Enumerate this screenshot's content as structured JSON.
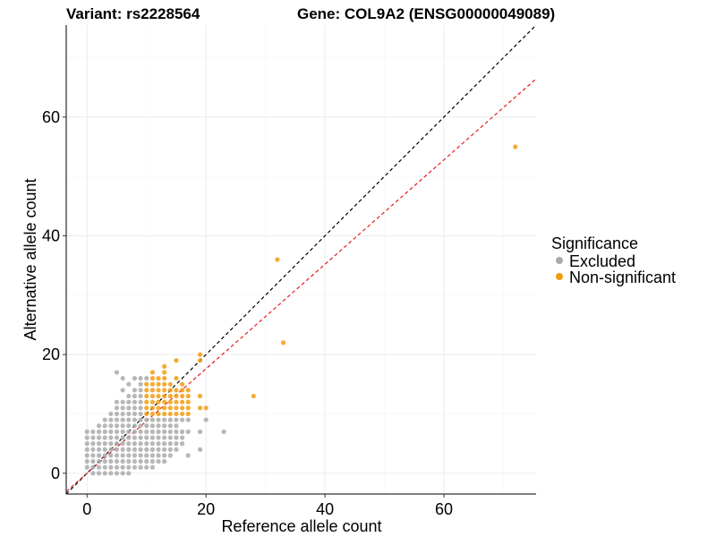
{
  "header": {
    "variant_title": "Variant: rs2228564",
    "gene_title": "Gene: COL9A2 (ENSG00000049089)"
  },
  "colors": {
    "excluded": "#aaaaaa",
    "non_significant": "#f39c12",
    "identity_line": "#000000",
    "fit_line": "#e41a1c"
  },
  "chart_data": {
    "type": "scatter",
    "xlabel": "Reference allele count",
    "ylabel": "Alternative allele count",
    "xlim": [
      -3.5,
      75.5
    ],
    "ylim": [
      -3.5,
      75.5
    ],
    "x_ticks": [
      0,
      20,
      40,
      60
    ],
    "y_ticks": [
      0,
      20,
      40,
      60
    ],
    "grid": true,
    "legend": {
      "title": "Significance",
      "position": "right"
    },
    "reference_lines": [
      {
        "style": "dashed",
        "color": "#000000",
        "slope": 1.0,
        "intercept": 0
      },
      {
        "style": "dashed",
        "color": "#e41a1c",
        "slope": 0.88,
        "intercept": 0
      }
    ],
    "series": [
      {
        "name": "Excluded",
        "color": "#aaaaaa",
        "points": [
          [
            0,
            1
          ],
          [
            0,
            2
          ],
          [
            0,
            3
          ],
          [
            0,
            4
          ],
          [
            0,
            5
          ],
          [
            0,
            6
          ],
          [
            0,
            7
          ],
          [
            1,
            0
          ],
          [
            1,
            1
          ],
          [
            1,
            2
          ],
          [
            1,
            3
          ],
          [
            1,
            4
          ],
          [
            1,
            5
          ],
          [
            1,
            6
          ],
          [
            1,
            7
          ],
          [
            2,
            0
          ],
          [
            2,
            1
          ],
          [
            2,
            2
          ],
          [
            2,
            3
          ],
          [
            2,
            4
          ],
          [
            2,
            5
          ],
          [
            2,
            6
          ],
          [
            2,
            7
          ],
          [
            2,
            8
          ],
          [
            3,
            0
          ],
          [
            3,
            1
          ],
          [
            3,
            2
          ],
          [
            3,
            3
          ],
          [
            3,
            4
          ],
          [
            3,
            5
          ],
          [
            3,
            6
          ],
          [
            3,
            7
          ],
          [
            3,
            8
          ],
          [
            3,
            9
          ],
          [
            4,
            0
          ],
          [
            4,
            1
          ],
          [
            4,
            2
          ],
          [
            4,
            3
          ],
          [
            4,
            4
          ],
          [
            4,
            5
          ],
          [
            4,
            6
          ],
          [
            4,
            7
          ],
          [
            4,
            8
          ],
          [
            4,
            9
          ],
          [
            4,
            10
          ],
          [
            5,
            0
          ],
          [
            5,
            1
          ],
          [
            5,
            2
          ],
          [
            5,
            3
          ],
          [
            5,
            4
          ],
          [
            5,
            5
          ],
          [
            5,
            6
          ],
          [
            5,
            7
          ],
          [
            5,
            8
          ],
          [
            5,
            9
          ],
          [
            5,
            10
          ],
          [
            5,
            11
          ],
          [
            5,
            12
          ],
          [
            5,
            17
          ],
          [
            6,
            0
          ],
          [
            6,
            1
          ],
          [
            6,
            2
          ],
          [
            6,
            3
          ],
          [
            6,
            4
          ],
          [
            6,
            5
          ],
          [
            6,
            6
          ],
          [
            6,
            7
          ],
          [
            6,
            8
          ],
          [
            6,
            9
          ],
          [
            6,
            10
          ],
          [
            6,
            11
          ],
          [
            6,
            12
          ],
          [
            6,
            14
          ],
          [
            6,
            16
          ],
          [
            7,
            0
          ],
          [
            7,
            1
          ],
          [
            7,
            2
          ],
          [
            7,
            3
          ],
          [
            7,
            4
          ],
          [
            7,
            5
          ],
          [
            7,
            6
          ],
          [
            7,
            7
          ],
          [
            7,
            8
          ],
          [
            7,
            9
          ],
          [
            7,
            10
          ],
          [
            7,
            11
          ],
          [
            7,
            12
          ],
          [
            7,
            13
          ],
          [
            7,
            15
          ],
          [
            8,
            1
          ],
          [
            8,
            2
          ],
          [
            8,
            3
          ],
          [
            8,
            4
          ],
          [
            8,
            5
          ],
          [
            8,
            6
          ],
          [
            8,
            7
          ],
          [
            8,
            8
          ],
          [
            8,
            9
          ],
          [
            8,
            10
          ],
          [
            8,
            11
          ],
          [
            8,
            12
          ],
          [
            8,
            13
          ],
          [
            8,
            14
          ],
          [
            8,
            16
          ],
          [
            9,
            1
          ],
          [
            9,
            2
          ],
          [
            9,
            3
          ],
          [
            9,
            4
          ],
          [
            9,
            5
          ],
          [
            9,
            6
          ],
          [
            9,
            7
          ],
          [
            9,
            8
          ],
          [
            9,
            9
          ],
          [
            9,
            10
          ],
          [
            9,
            11
          ],
          [
            9,
            12
          ],
          [
            9,
            13
          ],
          [
            9,
            14
          ],
          [
            9,
            15
          ],
          [
            9,
            16
          ],
          [
            10,
            1
          ],
          [
            10,
            2
          ],
          [
            10,
            3
          ],
          [
            10,
            4
          ],
          [
            10,
            5
          ],
          [
            10,
            6
          ],
          [
            10,
            7
          ],
          [
            10,
            8
          ],
          [
            10,
            9
          ],
          [
            10,
            16
          ],
          [
            11,
            1
          ],
          [
            11,
            2
          ],
          [
            11,
            3
          ],
          [
            11,
            4
          ],
          [
            11,
            5
          ],
          [
            11,
            6
          ],
          [
            11,
            7
          ],
          [
            11,
            8
          ],
          [
            11,
            9
          ],
          [
            12,
            2
          ],
          [
            12,
            3
          ],
          [
            12,
            4
          ],
          [
            12,
            5
          ],
          [
            12,
            6
          ],
          [
            12,
            7
          ],
          [
            12,
            8
          ],
          [
            12,
            9
          ],
          [
            13,
            2
          ],
          [
            13,
            3
          ],
          [
            13,
            4
          ],
          [
            13,
            5
          ],
          [
            13,
            6
          ],
          [
            13,
            7
          ],
          [
            13,
            8
          ],
          [
            13,
            9
          ],
          [
            14,
            3
          ],
          [
            14,
            4
          ],
          [
            14,
            5
          ],
          [
            14,
            6
          ],
          [
            14,
            7
          ],
          [
            14,
            8
          ],
          [
            14,
            9
          ],
          [
            15,
            4
          ],
          [
            15,
            5
          ],
          [
            15,
            6
          ],
          [
            15,
            7
          ],
          [
            15,
            8
          ],
          [
            15,
            9
          ],
          [
            16,
            5
          ],
          [
            16,
            6
          ],
          [
            16,
            7
          ],
          [
            16,
            9
          ],
          [
            17,
            3
          ],
          [
            17,
            7
          ],
          [
            17,
            9
          ],
          [
            19,
            4
          ],
          [
            19,
            7
          ],
          [
            20,
            9
          ],
          [
            23,
            7
          ]
        ]
      },
      {
        "name": "Non-significant",
        "color": "#f39c12",
        "points": [
          [
            10,
            10
          ],
          [
            10,
            11
          ],
          [
            10,
            12
          ],
          [
            10,
            13
          ],
          [
            10,
            14
          ],
          [
            10,
            15
          ],
          [
            11,
            10
          ],
          [
            11,
            11
          ],
          [
            11,
            12
          ],
          [
            11,
            13
          ],
          [
            11,
            14
          ],
          [
            11,
            15
          ],
          [
            11,
            16
          ],
          [
            11,
            17
          ],
          [
            12,
            10
          ],
          [
            12,
            11
          ],
          [
            12,
            12
          ],
          [
            12,
            13
          ],
          [
            12,
            14
          ],
          [
            12,
            15
          ],
          [
            12,
            16
          ],
          [
            13,
            10
          ],
          [
            13,
            11
          ],
          [
            13,
            12
          ],
          [
            13,
            13
          ],
          [
            13,
            14
          ],
          [
            13,
            15
          ],
          [
            13,
            16
          ],
          [
            13,
            17
          ],
          [
            13,
            18
          ],
          [
            14,
            10
          ],
          [
            14,
            11
          ],
          [
            14,
            12
          ],
          [
            14,
            13
          ],
          [
            14,
            14
          ],
          [
            14,
            15
          ],
          [
            15,
            10
          ],
          [
            15,
            11
          ],
          [
            15,
            12
          ],
          [
            15,
            13
          ],
          [
            15,
            14
          ],
          [
            15,
            16
          ],
          [
            15,
            19
          ],
          [
            16,
            10
          ],
          [
            16,
            11
          ],
          [
            16,
            12
          ],
          [
            16,
            13
          ],
          [
            16,
            14
          ],
          [
            16,
            15
          ],
          [
            17,
            10
          ],
          [
            17,
            11
          ],
          [
            17,
            12
          ],
          [
            17,
            13
          ],
          [
            17,
            14
          ],
          [
            19,
            11
          ],
          [
            19,
            13
          ],
          [
            19,
            19
          ],
          [
            19,
            20
          ],
          [
            20,
            11
          ],
          [
            28,
            13
          ],
          [
            32,
            36
          ],
          [
            33,
            22
          ],
          [
            72,
            55
          ]
        ]
      }
    ]
  }
}
